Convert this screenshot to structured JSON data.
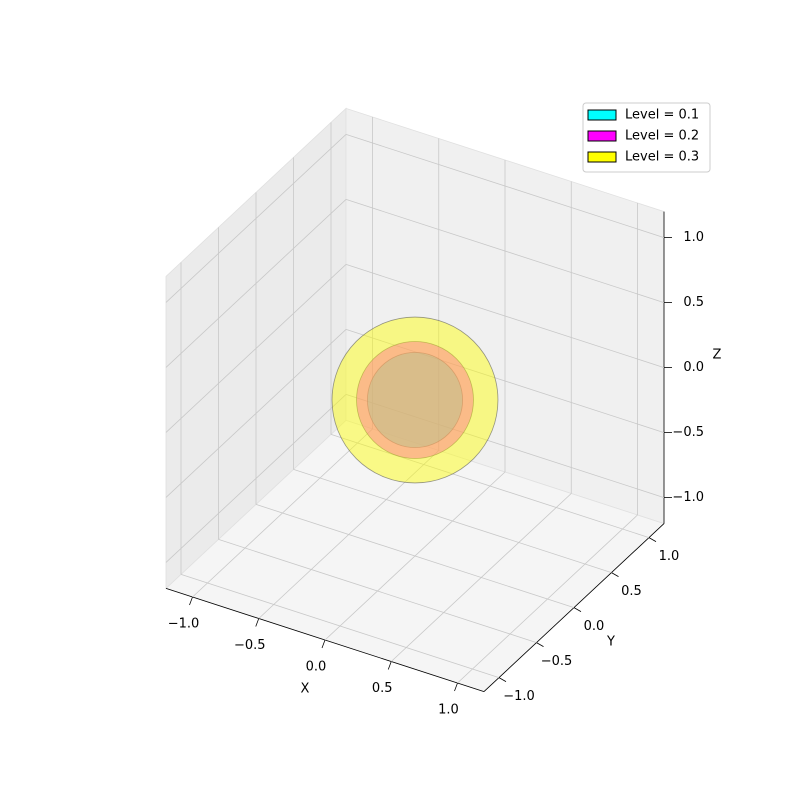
{
  "chart_data": {
    "type": "isosurface",
    "xlabel": "X",
    "ylabel": "Y",
    "zlabel": "Z",
    "xlim": [
      -1.2,
      1.2
    ],
    "ylim": [
      -1.2,
      1.2
    ],
    "zlim": [
      -1.2,
      1.2
    ],
    "xticks": [
      {
        "value": -1,
        "label": "−1.0"
      },
      {
        "value": -0.5,
        "label": "−0.5"
      },
      {
        "value": 0,
        "label": "0.0"
      },
      0.5,
      {
        "value": 1,
        "label": "1.0"
      }
    ],
    "yticks": [
      {
        "value": -1,
        "label": "−1.0"
      },
      {
        "value": -0.5,
        "label": "−0.5"
      },
      {
        "value": 0,
        "label": "0.0"
      },
      0.5,
      {
        "value": 1,
        "label": "1.0"
      }
    ],
    "zticks": [
      {
        "value": -1,
        "label": "−1.0"
      },
      {
        "value": -0.5,
        "label": "−0.5"
      },
      {
        "value": 0,
        "label": "0.0"
      },
      0.5,
      {
        "value": 1,
        "label": "1.0"
      }
    ],
    "grid": true,
    "legend": "upper right",
    "series": [
      {
        "name": "Level = 0.1",
        "color": "#00ffff",
        "radius": 0.35
      },
      {
        "name": "Level = 0.2",
        "color": "#ff00ff",
        "radius": 0.43
      },
      {
        "name": "Level = 0.3",
        "color": "#ffff00",
        "radius": 0.61
      }
    ]
  }
}
